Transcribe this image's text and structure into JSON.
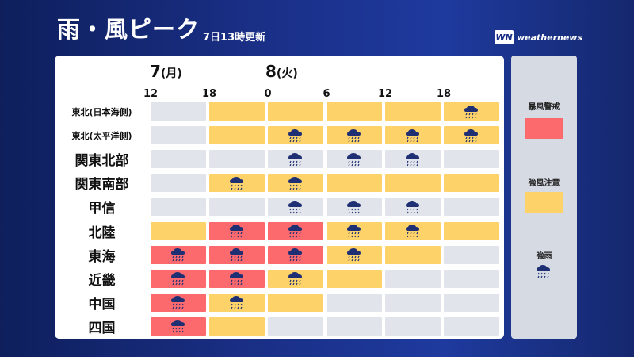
{
  "header": {
    "title": "雨・風ピーク",
    "subtitle": "7日13時更新",
    "logo_mark": "WN",
    "logo_text": "weathernews"
  },
  "colors": {
    "none": "#e1e4ea",
    "caution": "#fdd268",
    "warning": "#fc6a6e"
  },
  "timeline": {
    "days": [
      {
        "date": "7",
        "dow": "(月)"
      },
      {
        "date": "8",
        "dow": "(火)"
      }
    ],
    "hours": [
      "12",
      "18",
      "0",
      "6",
      "12",
      "18"
    ]
  },
  "regions": [
    {
      "name": "東北(日本海側)",
      "cells": [
        {
          "level": "none",
          "rain": false
        },
        {
          "level": "caution",
          "rain": false
        },
        {
          "level": "caution",
          "rain": false
        },
        {
          "level": "caution",
          "rain": false
        },
        {
          "level": "caution",
          "rain": false
        },
        {
          "level": "caution",
          "rain": true
        }
      ]
    },
    {
      "name": "東北(太平洋側)",
      "cells": [
        {
          "level": "none",
          "rain": false
        },
        {
          "level": "caution",
          "rain": false
        },
        {
          "level": "caution",
          "rain": true
        },
        {
          "level": "caution",
          "rain": true
        },
        {
          "level": "caution",
          "rain": true
        },
        {
          "level": "caution",
          "rain": true
        }
      ]
    },
    {
      "name": "関東北部",
      "cells": [
        {
          "level": "none",
          "rain": false
        },
        {
          "level": "none",
          "rain": false
        },
        {
          "level": "none",
          "rain": true
        },
        {
          "level": "none",
          "rain": true
        },
        {
          "level": "none",
          "rain": true
        },
        {
          "level": "none",
          "rain": false
        }
      ]
    },
    {
      "name": "関東南部",
      "cells": [
        {
          "level": "none",
          "rain": false
        },
        {
          "level": "caution",
          "rain": true
        },
        {
          "level": "caution",
          "rain": true
        },
        {
          "level": "caution",
          "rain": false
        },
        {
          "level": "caution",
          "rain": false
        },
        {
          "level": "caution",
          "rain": false
        }
      ]
    },
    {
      "name": "甲信",
      "cells": [
        {
          "level": "none",
          "rain": false
        },
        {
          "level": "none",
          "rain": false
        },
        {
          "level": "none",
          "rain": true
        },
        {
          "level": "none",
          "rain": true
        },
        {
          "level": "none",
          "rain": true
        },
        {
          "level": "none",
          "rain": false
        }
      ]
    },
    {
      "name": "北陸",
      "cells": [
        {
          "level": "caution",
          "rain": false
        },
        {
          "level": "warning",
          "rain": true
        },
        {
          "level": "warning",
          "rain": true
        },
        {
          "level": "caution",
          "rain": true
        },
        {
          "level": "caution",
          "rain": true
        },
        {
          "level": "caution",
          "rain": false
        }
      ]
    },
    {
      "name": "東海",
      "cells": [
        {
          "level": "warning",
          "rain": true
        },
        {
          "level": "warning",
          "rain": true
        },
        {
          "level": "warning",
          "rain": true
        },
        {
          "level": "caution",
          "rain": true
        },
        {
          "level": "caution",
          "rain": false
        },
        {
          "level": "none",
          "rain": false
        }
      ]
    },
    {
      "name": "近畿",
      "cells": [
        {
          "level": "warning",
          "rain": true
        },
        {
          "level": "warning",
          "rain": true
        },
        {
          "level": "caution",
          "rain": true
        },
        {
          "level": "caution",
          "rain": false
        },
        {
          "level": "none",
          "rain": false
        },
        {
          "level": "none",
          "rain": false
        }
      ]
    },
    {
      "name": "中国",
      "cells": [
        {
          "level": "warning",
          "rain": true
        },
        {
          "level": "caution",
          "rain": true
        },
        {
          "level": "caution",
          "rain": false
        },
        {
          "level": "none",
          "rain": false
        },
        {
          "level": "none",
          "rain": false
        },
        {
          "level": "none",
          "rain": false
        }
      ]
    },
    {
      "name": "四国",
      "cells": [
        {
          "level": "warning",
          "rain": true
        },
        {
          "level": "caution",
          "rain": false
        },
        {
          "level": "none",
          "rain": false
        },
        {
          "level": "none",
          "rain": false
        },
        {
          "level": "none",
          "rain": false
        },
        {
          "level": "none",
          "rain": false
        }
      ]
    }
  ],
  "legend": {
    "warning_label": "暴風警戒",
    "caution_label": "強風注意",
    "rain_label": "強雨"
  }
}
